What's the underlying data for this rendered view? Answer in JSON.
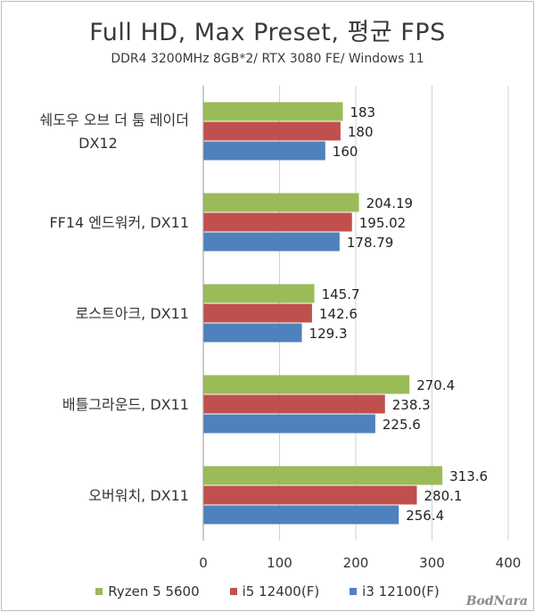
{
  "chart_data": {
    "type": "bar",
    "orientation": "horizontal",
    "title": "Full HD, Max Preset, 평균 FPS",
    "subtitle": "DDR4 3200MHz 8GB*2/ RTX 3080 FE/ Windows 11",
    "categories": [
      [
        "쉐도우 오브 더 툼 레이더",
        "DX12"
      ],
      [
        "FF14 엔드워커, DX11"
      ],
      [
        "로스트아크, DX11"
      ],
      [
        "배틀그라운드, DX11"
      ],
      [
        "오버워치, DX11"
      ]
    ],
    "series": [
      {
        "name": "Ryzen 5 5600",
        "color": "#9bbb59",
        "values": [
          183,
          204.19,
          145.7,
          270.4,
          313.6
        ],
        "labels": [
          "183",
          "204.19",
          "145.7",
          "270.4",
          "313.6"
        ]
      },
      {
        "name": "i5 12400(F)",
        "color": "#c0504d",
        "values": [
          180,
          195.02,
          142.6,
          238.3,
          280.1
        ],
        "labels": [
          "180",
          "195.02",
          "142.6",
          "238.3",
          "280.1"
        ]
      },
      {
        "name": "i3 12100(F)",
        "color": "#4f81bd",
        "values": [
          160,
          178.79,
          129.3,
          225.6,
          256.4
        ],
        "labels": [
          "160",
          "178.79",
          "129.3",
          "225.6",
          "256.4"
        ]
      }
    ],
    "xlim": [
      0,
      400
    ],
    "xticks": [
      "0",
      "100",
      "200",
      "300",
      "400"
    ],
    "grid": true,
    "legend_position": "bottom"
  },
  "watermark": "BodNara"
}
